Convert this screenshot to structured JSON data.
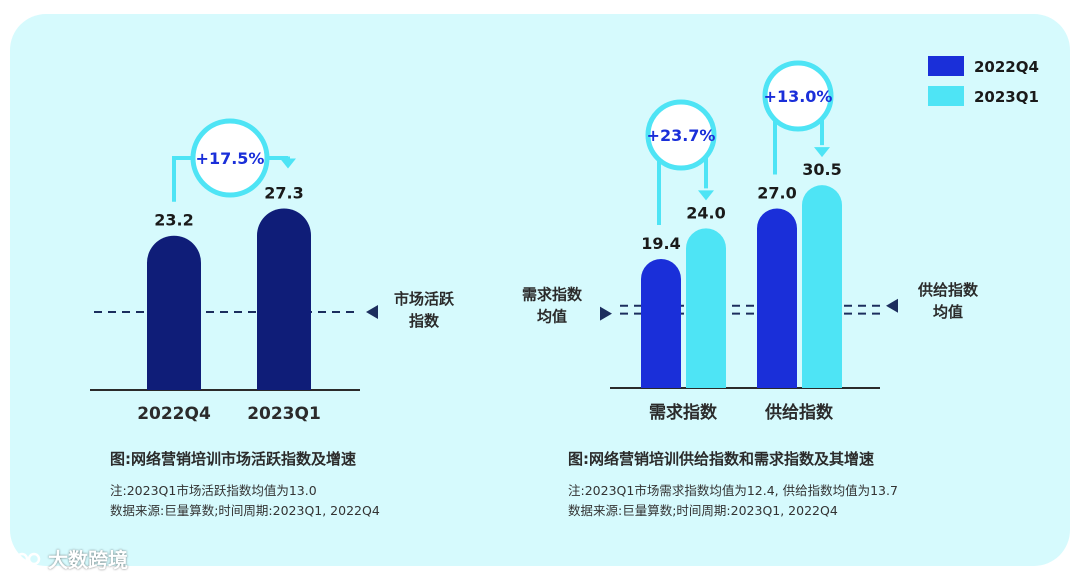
{
  "colors": {
    "panel_bg": "#d6fafd",
    "dark_navy": "#0f1d78",
    "q4_blue": "#1a2fd9",
    "q1_cyan": "#4ee4f5",
    "dashed_line": "#1c2e5e",
    "growth_text": "#1a2fd9"
  },
  "chart_data": [
    {
      "type": "bar",
      "categories": [
        "2022Q4",
        "2023Q1"
      ],
      "values": [
        23.2,
        27.3
      ],
      "value_labels": [
        "23.2",
        "27.3"
      ],
      "growth_label": "+17.5%",
      "reference_value": 13.0,
      "reference_label_lines": [
        "市场活跃",
        "指数"
      ],
      "caption": "图:网络营销培训市场活跃指数及增速",
      "notes": [
        "注:2023Q1市场活跃指数均值为13.0",
        "数据来源:巨量算数;时间周期:2023Q1, 2022Q4"
      ]
    },
    {
      "type": "bar",
      "categories": [
        "需求指数",
        "供给指数"
      ],
      "series": [
        {
          "name": "2022Q4",
          "values": [
            19.4,
            27.0
          ],
          "value_labels": [
            "19.4",
            "27.0"
          ]
        },
        {
          "name": "2023Q1",
          "values": [
            24.0,
            30.5
          ],
          "value_labels": [
            "24.0",
            "30.5"
          ]
        }
      ],
      "growth_labels": [
        "+23.7%",
        "+13.0%"
      ],
      "reference_lines": [
        {
          "value": 13.7,
          "label_lines": [
            "供给指数",
            "均值"
          ]
        },
        {
          "value": 12.4,
          "label_lines": [
            "需求指数",
            "均值"
          ]
        }
      ],
      "legend_position": "top-right",
      "caption": "图:网络营销培训供给指数和需求指数及其增速",
      "notes": [
        "注:2023Q1市场需求指数均值为12.4, 供给指数均值为13.7",
        "数据来源:巨量算数;时间周期:2023Q1, 2022Q4"
      ]
    }
  ],
  "watermark": {
    "text": "大数跨境",
    "icon": "brand-logo-icon"
  }
}
